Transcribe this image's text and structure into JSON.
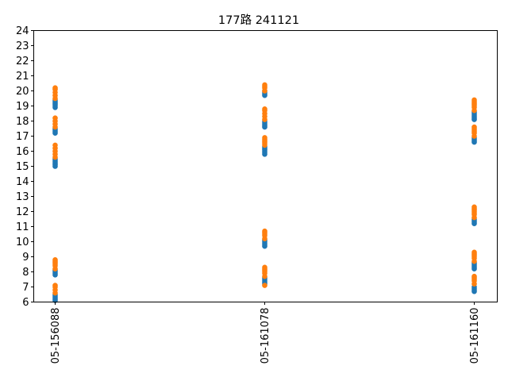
{
  "chart_data": {
    "type": "scatter",
    "title": "177路  241121",
    "xlabel": "",
    "ylabel": "",
    "categories": [
      "05-156088",
      "05-161078",
      "05-161160"
    ],
    "ylim": [
      6,
      24
    ],
    "yticks": [
      6,
      7,
      8,
      9,
      10,
      11,
      12,
      13,
      14,
      15,
      16,
      17,
      18,
      19,
      20,
      21,
      22,
      23,
      24
    ],
    "grid": false,
    "legend": "none",
    "colors": [
      "#1f77b4",
      "#ff7f0e"
    ],
    "series": [
      {
        "color": "#1f77b4",
        "points": [
          {
            "x": "05-156088",
            "y": [
              6.1,
              6.2,
              6.3,
              6.4,
              6.5,
              7.8,
              7.9,
              8.0,
              8.1,
              15.0,
              15.1,
              15.2,
              15.3,
              15.4,
              15.5,
              17.2,
              17.3,
              17.4,
              17.5,
              18.9,
              19.0,
              19.1,
              19.2,
              19.3,
              19.4
            ]
          },
          {
            "x": "05-161078",
            "y": [
              7.2,
              7.3,
              7.4,
              7.5,
              7.6,
              9.7,
              9.8,
              9.9,
              10.0,
              10.1,
              15.8,
              15.9,
              16.0,
              16.1,
              16.2,
              16.3,
              17.6,
              17.7,
              17.8,
              17.9,
              18.0,
              19.7,
              19.8,
              19.9,
              20.0
            ]
          },
          {
            "x": "05-161160",
            "y": [
              6.7,
              6.8,
              6.9,
              7.0,
              8.2,
              8.3,
              8.4,
              8.5,
              8.6,
              11.2,
              11.3,
              11.4,
              11.5,
              16.6,
              16.7,
              16.8,
              16.9,
              18.1,
              18.2,
              18.3,
              18.4,
              18.5,
              18.6
            ]
          }
        ]
      },
      {
        "color": "#ff7f0e",
        "points": [
          {
            "x": "05-156088",
            "y": [
              6.6,
              6.8,
              7.0,
              7.1,
              8.2,
              8.4,
              8.5,
              8.6,
              8.7,
              8.8,
              15.6,
              15.8,
              16.0,
              16.2,
              16.4,
              17.6,
              17.8,
              18.0,
              18.2,
              19.5,
              19.7,
              19.9,
              20.1,
              20.2
            ]
          },
          {
            "x": "05-161078",
            "y": [
              7.1,
              7.7,
              7.9,
              8.0,
              8.1,
              8.2,
              8.3,
              10.2,
              10.4,
              10.5,
              10.6,
              10.7,
              16.4,
              16.5,
              16.6,
              16.7,
              16.8,
              16.9,
              18.1,
              18.3,
              18.5,
              18.7,
              18.8,
              20.0,
              20.2,
              20.3,
              20.4
            ]
          },
          {
            "x": "05-161160",
            "y": [
              7.2,
              7.4,
              7.5,
              7.6,
              7.7,
              8.7,
              8.9,
              9.0,
              9.1,
              9.2,
              9.3,
              11.6,
              11.8,
              11.9,
              12.0,
              12.1,
              12.2,
              12.3,
              17.0,
              17.2,
              17.3,
              17.4,
              17.5,
              17.6,
              18.7,
              18.9,
              19.0,
              19.1,
              19.2,
              19.3,
              19.4
            ]
          }
        ]
      }
    ]
  }
}
